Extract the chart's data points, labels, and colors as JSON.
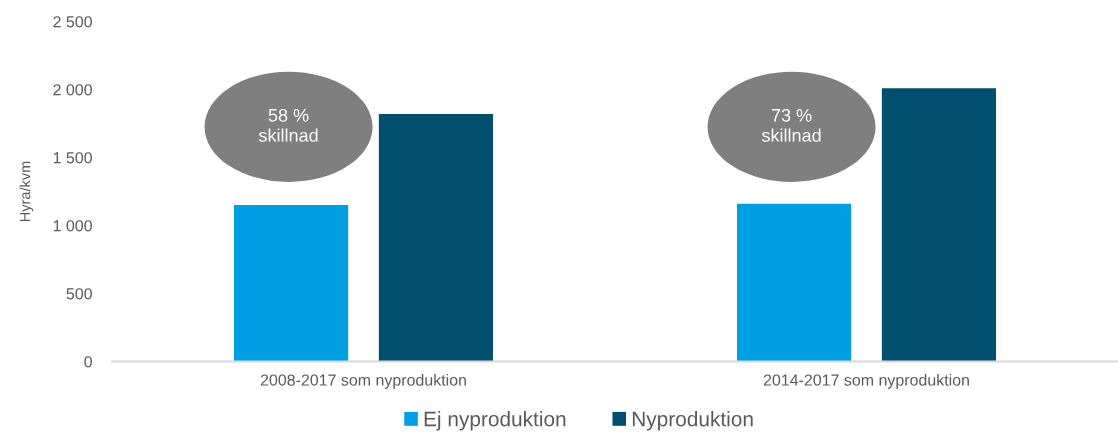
{
  "chart_data": {
    "type": "bar",
    "ylabel": "Hyra/kvm",
    "categories": [
      "2008-2017 som nyproduktion",
      "2014-2017 som nyproduktion"
    ],
    "series": [
      {
        "name": "Ej nyproduktion",
        "color": "#009fe3",
        "values": [
          1150,
          1160
        ]
      },
      {
        "name": "Nyproduktion",
        "color": "#004f6e",
        "values": [
          1820,
          2010
        ]
      }
    ],
    "ylim": [
      0,
      2500
    ],
    "yticks": [
      0,
      500,
      {
        "value": 1000,
        "label": "1 000"
      },
      {
        "value": 1500,
        "label": "1 500"
      },
      {
        "value": 2000,
        "label": "2 000"
      },
      {
        "value": 2500,
        "label": "2 500"
      }
    ],
    "legend": "bottom",
    "annotations": [
      "58 %\nskillnad",
      "73 %\nskillnad"
    ]
  }
}
